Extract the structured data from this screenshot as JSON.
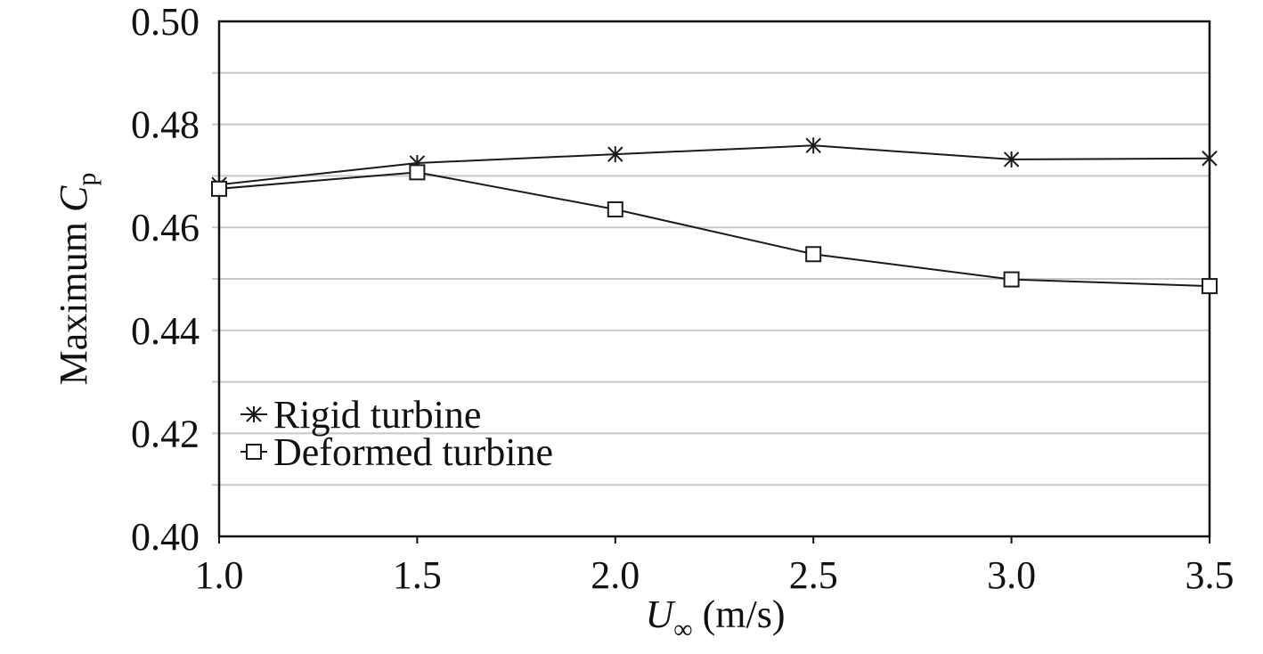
{
  "chart_data": {
    "type": "line",
    "title": "",
    "xlabel": {
      "symbol": "U",
      "subscript": "∞",
      "unit": " (m/s)"
    },
    "ylabel": {
      "prefix": "Maximum ",
      "symbol": "C",
      "subscript": "p"
    },
    "x": [
      1.0,
      1.5,
      2.0,
      2.5,
      3.0,
      3.5
    ],
    "xlim": [
      1.0,
      3.5
    ],
    "ylim": [
      0.4,
      0.5
    ],
    "x_ticks": [
      "1.0",
      "1.5",
      "2.0",
      "2.5",
      "3.0",
      "3.5"
    ],
    "y_ticks": [
      "0.40",
      "0.42",
      "0.44",
      "0.46",
      "0.48",
      "0.50"
    ],
    "grid": true,
    "legend_position": "bottom-left",
    "series": [
      {
        "name": "Rigid turbine",
        "marker": "x-star",
        "values": [
          0.4683,
          0.4725,
          0.4742,
          0.4759,
          0.4732,
          0.4734
        ]
      },
      {
        "name": "Deformed turbine",
        "marker": "square",
        "values": [
          0.4675,
          0.4707,
          0.4635,
          0.4548,
          0.4499,
          0.4486
        ]
      }
    ],
    "colors": {
      "line": "#1a1a1a",
      "grid": "#c8c8c8",
      "axis": "#111111"
    }
  }
}
